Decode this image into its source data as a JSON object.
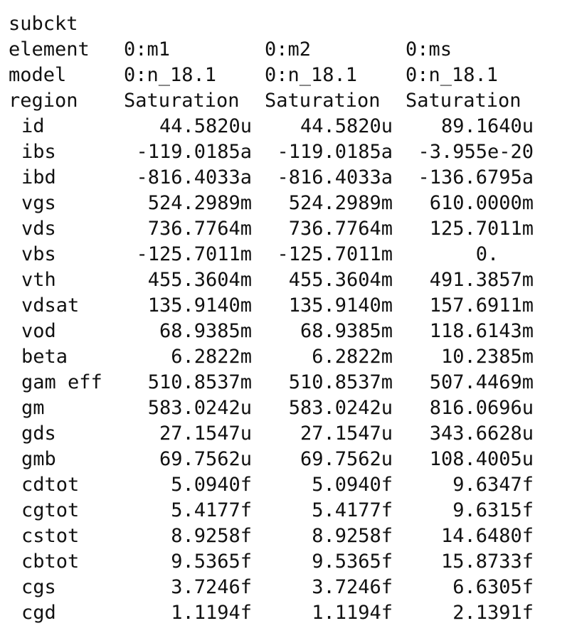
{
  "title": "subckt",
  "header_rows": [
    {
      "label": "element",
      "values": [
        "0:m1",
        "0:m2",
        "0:ms"
      ]
    },
    {
      "label": "model",
      "values": [
        "0:n_18.1",
        "0:n_18.1",
        "0:n_18.1"
      ]
    },
    {
      "label": "region",
      "values": [
        "Saturation",
        "Saturation",
        "Saturation"
      ]
    }
  ],
  "param_rows": [
    {
      "label": "id",
      "values": [
        "44.5820u",
        "44.5820u",
        "89.1640u"
      ]
    },
    {
      "label": "ibs",
      "values": [
        "-119.0185a",
        "-119.0185a",
        "-3.955e-20"
      ]
    },
    {
      "label": "ibd",
      "values": [
        "-816.4033a",
        "-816.4033a",
        "-136.6795a"
      ]
    },
    {
      "label": "vgs",
      "values": [
        "524.2989m",
        "524.2989m",
        "610.0000m"
      ]
    },
    {
      "label": "vds",
      "values": [
        "736.7764m",
        "736.7764m",
        "125.7011m"
      ]
    },
    {
      "label": "vbs",
      "values": [
        "-125.7011m",
        "-125.7011m",
        "0.   "
      ]
    },
    {
      "label": "vth",
      "values": [
        "455.3604m",
        "455.3604m",
        "491.3857m"
      ]
    },
    {
      "label": "vdsat",
      "values": [
        "135.9140m",
        "135.9140m",
        "157.6911m"
      ]
    },
    {
      "label": "vod",
      "values": [
        "68.9385m",
        "68.9385m",
        "118.6143m"
      ]
    },
    {
      "label": "beta",
      "values": [
        "6.2822m",
        "6.2822m",
        "10.2385m"
      ]
    },
    {
      "label": "gam eff",
      "values": [
        "510.8537m",
        "510.8537m",
        "507.4469m"
      ]
    },
    {
      "label": "gm",
      "values": [
        "583.0242u",
        "583.0242u",
        "816.0696u"
      ]
    },
    {
      "label": "gds",
      "values": [
        "27.1547u",
        "27.1547u",
        "343.6628u"
      ]
    },
    {
      "label": "gmb",
      "values": [
        "69.7562u",
        "69.7562u",
        "108.4005u"
      ]
    },
    {
      "label": "cdtot",
      "values": [
        "5.0940f",
        "5.0940f",
        "9.6347f"
      ]
    },
    {
      "label": "cgtot",
      "values": [
        "5.4177f",
        "5.4177f",
        "9.6315f"
      ]
    },
    {
      "label": "cstot",
      "values": [
        "8.9258f",
        "8.9258f",
        "14.6480f"
      ]
    },
    {
      "label": "cbtot",
      "values": [
        "9.5365f",
        "9.5365f",
        "15.8733f"
      ]
    },
    {
      "label": "cgs",
      "values": [
        "3.7246f",
        "3.7246f",
        "6.6305f"
      ]
    },
    {
      "label": "cgd",
      "values": [
        "1.1194f",
        "1.1194f",
        "2.1391f"
      ]
    }
  ]
}
